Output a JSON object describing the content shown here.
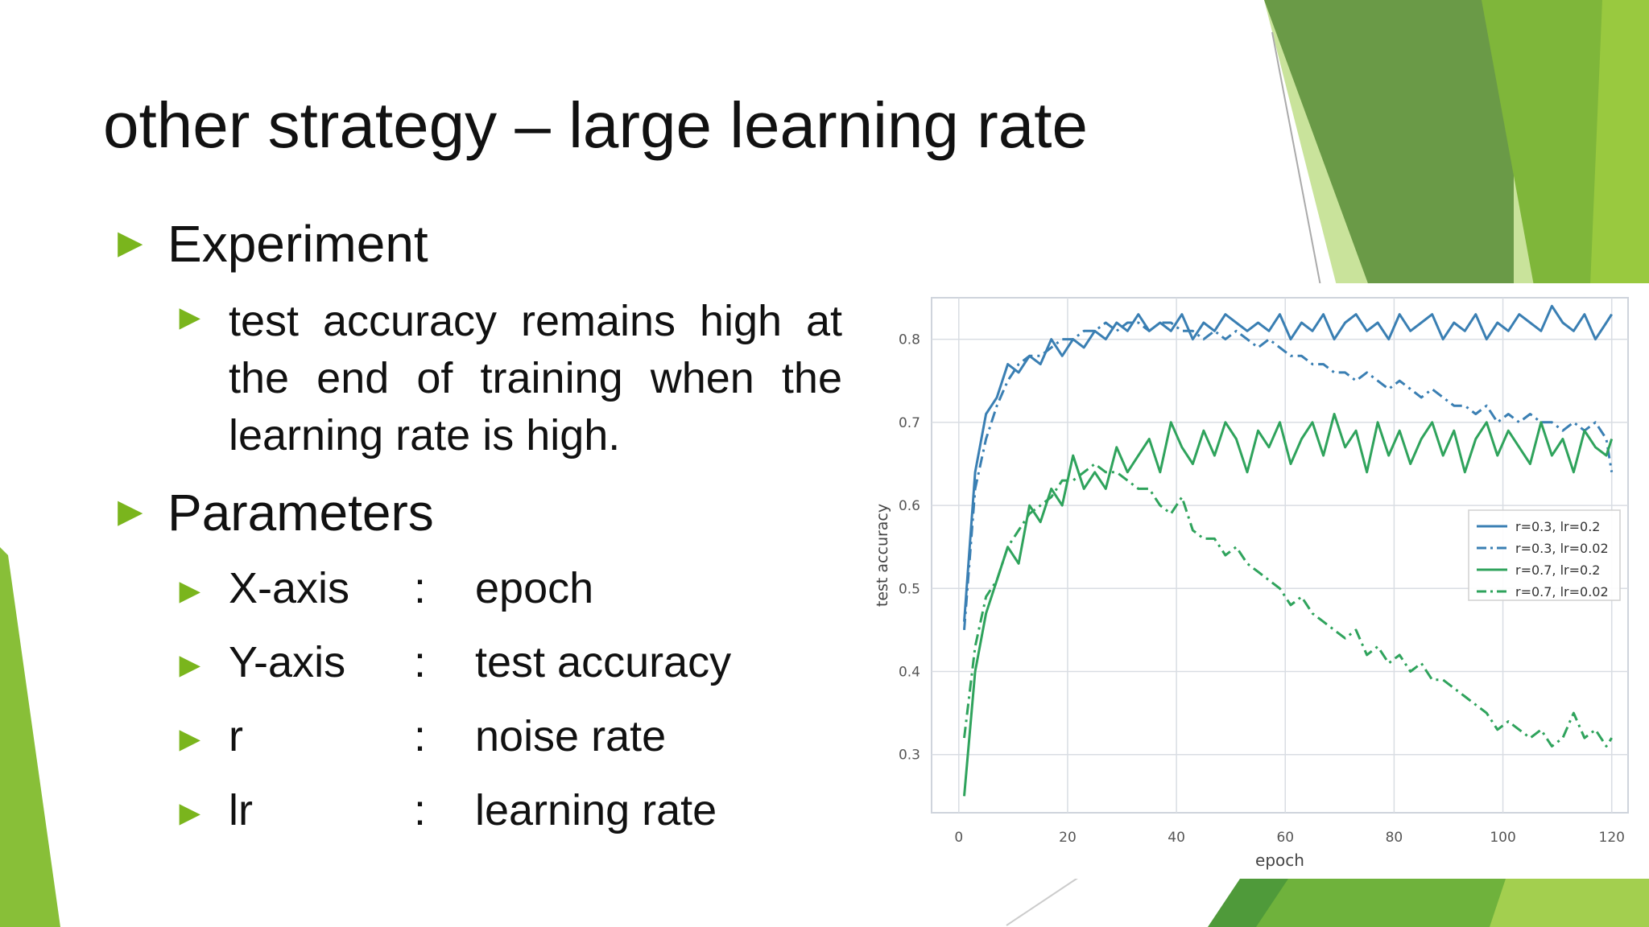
{
  "slide": {
    "title": "other strategy – large learning rate",
    "bullets": {
      "experiment": "Experiment",
      "experiment_text": "test accuracy remains high at the end of training when the learning rate is high.",
      "parameters": "Parameters"
    },
    "params": [
      {
        "name": "X-axis",
        "colon": ":",
        "desc": "epoch"
      },
      {
        "name": "Y-axis",
        "colon": ":",
        "desc": "test accuracy"
      },
      {
        "name": "r",
        "colon": ":",
        "desc": "noise rate"
      },
      {
        "name": "lr",
        "colon": ":",
        "desc": "learning rate"
      }
    ],
    "accent_color": "#7ab51d",
    "arrow_glyph": "►"
  },
  "chart_data": {
    "type": "line",
    "title": "",
    "xlabel": "epoch",
    "ylabel": "test accuracy",
    "xlim": [
      -5,
      123
    ],
    "ylim": [
      0.23,
      0.85
    ],
    "xticks": [
      0,
      20,
      40,
      60,
      80,
      100,
      120
    ],
    "yticks": [
      0.3,
      0.4,
      0.5,
      0.6,
      0.7,
      0.8
    ],
    "grid": true,
    "legend_position": "center-right",
    "series": [
      {
        "name": "r=0.3, lr=0.2",
        "style": "solid",
        "color": "#3a7fb3",
        "x": [
          1,
          3,
          5,
          7,
          9,
          11,
          13,
          15,
          17,
          19,
          21,
          23,
          25,
          27,
          29,
          31,
          33,
          35,
          37,
          39,
          41,
          43,
          45,
          47,
          49,
          51,
          53,
          55,
          57,
          59,
          61,
          63,
          65,
          67,
          69,
          71,
          73,
          75,
          77,
          79,
          81,
          83,
          85,
          87,
          89,
          91,
          93,
          95,
          97,
          99,
          101,
          103,
          105,
          107,
          109,
          111,
          113,
          115,
          117,
          119,
          120
        ],
        "y": [
          0.46,
          0.64,
          0.71,
          0.73,
          0.77,
          0.76,
          0.78,
          0.77,
          0.8,
          0.78,
          0.8,
          0.79,
          0.81,
          0.8,
          0.82,
          0.81,
          0.83,
          0.81,
          0.82,
          0.81,
          0.83,
          0.8,
          0.82,
          0.81,
          0.83,
          0.82,
          0.81,
          0.82,
          0.81,
          0.83,
          0.8,
          0.82,
          0.81,
          0.83,
          0.8,
          0.82,
          0.83,
          0.81,
          0.82,
          0.8,
          0.83,
          0.81,
          0.82,
          0.83,
          0.8,
          0.82,
          0.81,
          0.83,
          0.8,
          0.82,
          0.81,
          0.83,
          0.82,
          0.81,
          0.84,
          0.82,
          0.81,
          0.83,
          0.8,
          0.82,
          0.83
        ]
      },
      {
        "name": "r=0.3, lr=0.02",
        "style": "dashdot",
        "color": "#3a7fb3",
        "x": [
          1,
          3,
          5,
          7,
          9,
          11,
          13,
          15,
          17,
          19,
          21,
          23,
          25,
          27,
          29,
          31,
          33,
          35,
          37,
          39,
          41,
          43,
          45,
          47,
          49,
          51,
          53,
          55,
          57,
          59,
          61,
          63,
          65,
          67,
          69,
          71,
          73,
          75,
          77,
          79,
          81,
          83,
          85,
          87,
          89,
          91,
          93,
          95,
          97,
          99,
          101,
          103,
          105,
          107,
          109,
          111,
          113,
          115,
          117,
          119,
          120
        ],
        "y": [
          0.45,
          0.62,
          0.68,
          0.72,
          0.75,
          0.77,
          0.78,
          0.78,
          0.79,
          0.8,
          0.8,
          0.81,
          0.81,
          0.82,
          0.81,
          0.82,
          0.82,
          0.81,
          0.82,
          0.82,
          0.81,
          0.81,
          0.8,
          0.81,
          0.8,
          0.81,
          0.8,
          0.79,
          0.8,
          0.79,
          0.78,
          0.78,
          0.77,
          0.77,
          0.76,
          0.76,
          0.75,
          0.76,
          0.75,
          0.74,
          0.75,
          0.74,
          0.73,
          0.74,
          0.73,
          0.72,
          0.72,
          0.71,
          0.72,
          0.7,
          0.71,
          0.7,
          0.71,
          0.7,
          0.7,
          0.69,
          0.7,
          0.69,
          0.7,
          0.68,
          0.64
        ]
      },
      {
        "name": "r=0.7, lr=0.2",
        "style": "solid",
        "color": "#2fa35c",
        "x": [
          1,
          3,
          5,
          7,
          9,
          11,
          13,
          15,
          17,
          19,
          21,
          23,
          25,
          27,
          29,
          31,
          33,
          35,
          37,
          39,
          41,
          43,
          45,
          47,
          49,
          51,
          53,
          55,
          57,
          59,
          61,
          63,
          65,
          67,
          69,
          71,
          73,
          75,
          77,
          79,
          81,
          83,
          85,
          87,
          89,
          91,
          93,
          95,
          97,
          99,
          101,
          103,
          105,
          107,
          109,
          111,
          113,
          115,
          117,
          119,
          120
        ],
        "y": [
          0.25,
          0.4,
          0.47,
          0.51,
          0.55,
          0.53,
          0.6,
          0.58,
          0.62,
          0.6,
          0.66,
          0.62,
          0.64,
          0.62,
          0.67,
          0.64,
          0.66,
          0.68,
          0.64,
          0.7,
          0.67,
          0.65,
          0.69,
          0.66,
          0.7,
          0.68,
          0.64,
          0.69,
          0.67,
          0.7,
          0.65,
          0.68,
          0.7,
          0.66,
          0.71,
          0.67,
          0.69,
          0.64,
          0.7,
          0.66,
          0.69,
          0.65,
          0.68,
          0.7,
          0.66,
          0.69,
          0.64,
          0.68,
          0.7,
          0.66,
          0.69,
          0.67,
          0.65,
          0.7,
          0.66,
          0.68,
          0.64,
          0.69,
          0.67,
          0.66,
          0.68
        ]
      },
      {
        "name": "r=0.7, lr=0.02",
        "style": "dashdot",
        "color": "#2fa35c",
        "x": [
          1,
          3,
          5,
          7,
          9,
          11,
          13,
          15,
          17,
          19,
          21,
          23,
          25,
          27,
          29,
          31,
          33,
          35,
          37,
          39,
          41,
          43,
          45,
          47,
          49,
          51,
          53,
          55,
          57,
          59,
          61,
          63,
          65,
          67,
          69,
          71,
          73,
          75,
          77,
          79,
          81,
          83,
          85,
          87,
          89,
          91,
          93,
          95,
          97,
          99,
          101,
          103,
          105,
          107,
          109,
          111,
          113,
          115,
          117,
          119,
          120
        ],
        "y": [
          0.32,
          0.43,
          0.49,
          0.51,
          0.55,
          0.57,
          0.59,
          0.6,
          0.61,
          0.63,
          0.63,
          0.64,
          0.65,
          0.64,
          0.64,
          0.63,
          0.62,
          0.62,
          0.6,
          0.59,
          0.61,
          0.57,
          0.56,
          0.56,
          0.54,
          0.55,
          0.53,
          0.52,
          0.51,
          0.5,
          0.48,
          0.49,
          0.47,
          0.46,
          0.45,
          0.44,
          0.45,
          0.42,
          0.43,
          0.41,
          0.42,
          0.4,
          0.41,
          0.39,
          0.39,
          0.38,
          0.37,
          0.36,
          0.35,
          0.33,
          0.34,
          0.33,
          0.32,
          0.33,
          0.31,
          0.32,
          0.35,
          0.32,
          0.33,
          0.31,
          0.32
        ]
      }
    ]
  }
}
